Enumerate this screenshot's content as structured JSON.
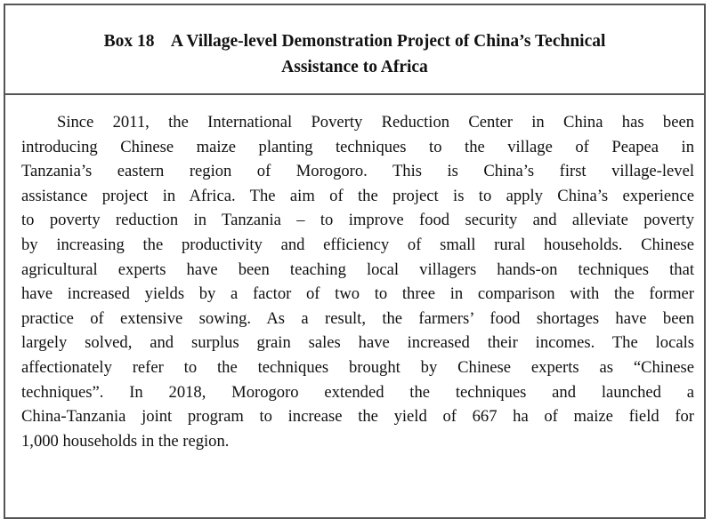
{
  "box": {
    "title_line1": "Box 18    A Village-level Demonstration Project of China’s Technical",
    "title_line2": "Assistance to Africa",
    "lines": [
      "Since 2011, the International Poverty Reduction Center in China has been",
      "introducing Chinese maize planting techniques to the village of Peapea in",
      "Tanzania’s eastern region of Morogoro. This is China’s first village-level",
      "assistance project in Africa. The aim of the project is to apply China’s experience",
      "to poverty reduction in Tanzania – to improve food security and alleviate poverty",
      "by increasing the productivity and efficiency of small rural households. Chinese",
      "agricultural experts have been teaching local villagers hands-on techniques that",
      "have increased yields by a factor of two to three in comparison with the former",
      "practice of extensive sowing. As a result, the farmers’ food shortages have been",
      "largely solved, and surplus grain sales have increased their incomes. The locals",
      "affectionately refer to the techniques brought by Chinese experts as “Chinese",
      "techniques”. In 2018, Morogoro extended the techniques and launched a",
      "China-Tanzania joint program to increase the yield of 667 ha of maize field for",
      "1,000 households in the region."
    ]
  }
}
